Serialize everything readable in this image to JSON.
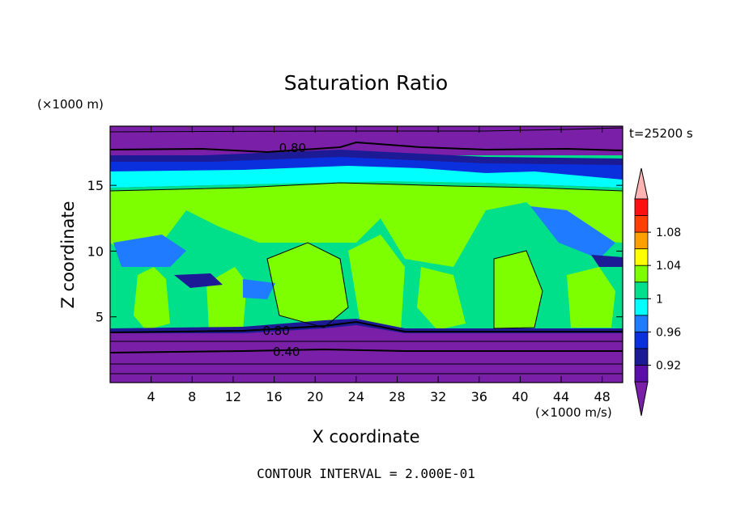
{
  "chart_data": {
    "type": "heatmap",
    "title": "Saturation Ratio",
    "xlabel": "X coordinate",
    "ylabel": "Z coordinate",
    "x_unit": "(×1000 m/s)",
    "y_unit": "(×1000 m)",
    "time_label": "t=25200 s",
    "note": "CONTOUR INTERVAL = 2.000E-01",
    "xlim": [
      0,
      50
    ],
    "ylim": [
      0,
      19.5
    ],
    "x_ticks": [
      4,
      8,
      12,
      16,
      20,
      24,
      28,
      32,
      36,
      40,
      44,
      48
    ],
    "y_ticks": [
      5,
      10,
      15
    ],
    "contour_labels": [
      {
        "text": "0.80",
        "x": 17.8,
        "z": 17.9
      },
      {
        "text": "0.80",
        "x": 16.2,
        "z": 4.0
      },
      {
        "text": "0.40",
        "x": 17.2,
        "z": 2.4
      }
    ],
    "colorbar": {
      "levels": [
        0.9,
        0.92,
        0.94,
        0.96,
        0.98,
        1.0,
        1.02,
        1.04,
        1.06,
        1.08,
        1.1
      ],
      "labels": [
        "0.92",
        "0.96",
        "1",
        "1.04",
        "1.08"
      ],
      "colors": [
        "#5a0fa8",
        "#1d1a96",
        "#0a2fdc",
        "#1f7bff",
        "#00ffff",
        "#00e08a",
        "#7dff00",
        "#ffff00",
        "#ffa000",
        "#ff4000",
        "#ff1010"
      ],
      "under_color": "#7a1fa8",
      "over_color": "#ffb3b3"
    }
  }
}
